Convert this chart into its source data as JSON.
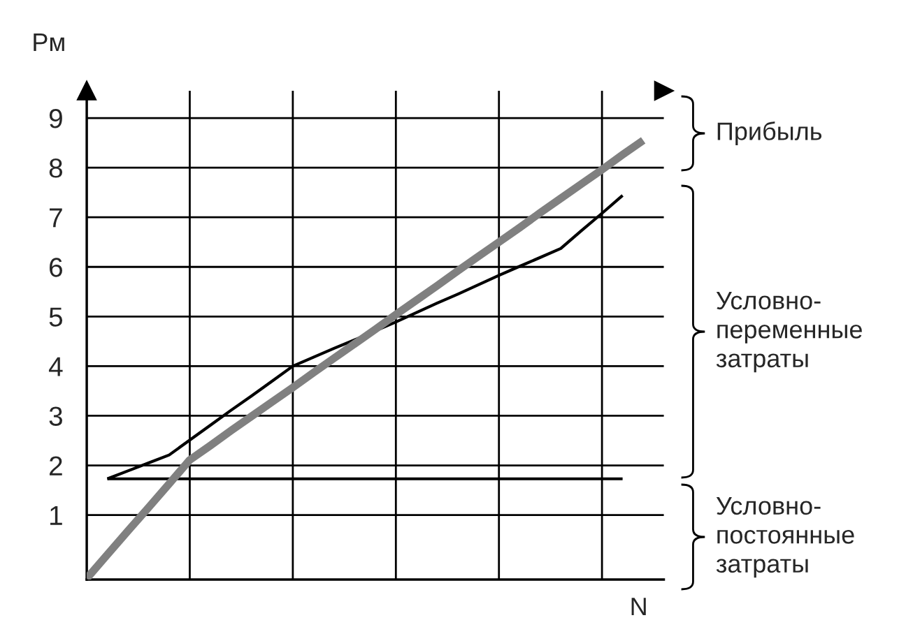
{
  "chart_data": {
    "type": "line",
    "ylabel": "Pм",
    "xlabel": "N",
    "categories": [
      null,
      null,
      null,
      null,
      null,
      null,
      null,
      null,
      null,
      null,
      null,
      null,
      null,
      null,
      null,
      null,
      null,
      null,
      null,
      null,
      null,
      null,
      null,
      null,
      null,
      null,
      null,
      null,
      null
    ],
    "ylim": [
      -0.3,
      9.55
    ],
    "yticks": [
      1,
      2,
      3,
      4,
      5,
      6,
      7,
      8,
      9
    ],
    "grid": true,
    "marker": "none",
    "line_style": "solid",
    "series": [
      {
        "color": "#808080",
        "values": [
          -0.28,
          0.2,
          0.68,
          1.15,
          1.63,
          2.11,
          2.4,
          2.7,
          2.99,
          3.28,
          3.57,
          3.87,
          4.16,
          4.45,
          4.74,
          5.04,
          5.33,
          5.62,
          5.92,
          6.21,
          6.5,
          6.79,
          7.09,
          7.38,
          7.67,
          7.96,
          8.26,
          8.55,
          null
        ]
      },
      {
        "color": "#000000",
        "values": [
          null,
          1.73,
          1.89,
          2.05,
          2.21,
          2.51,
          2.81,
          3.11,
          3.4,
          3.7,
          4.0,
          4.18,
          4.36,
          4.53,
          4.71,
          4.89,
          5.08,
          5.27,
          5.45,
          5.64,
          5.83,
          6.01,
          6.19,
          6.37,
          6.73,
          7.08,
          7.44,
          null,
          null
        ]
      },
      {
        "color": "#000000",
        "values": [
          null,
          1.73,
          1.73,
          1.73,
          1.73,
          1.73,
          1.73,
          1.73,
          1.73,
          1.73,
          1.73,
          1.73,
          1.73,
          1.73,
          1.73,
          1.73,
          1.73,
          1.73,
          1.73,
          1.73,
          1.73,
          1.73,
          1.73,
          1.73,
          1.73,
          1.73,
          1.73,
          null,
          null
        ]
      }
    ],
    "annotations": [
      "Прибыль",
      "Условно-\nпеременные\nзатраты",
      "Условно-\nпостоянные\nзатраты"
    ]
  }
}
